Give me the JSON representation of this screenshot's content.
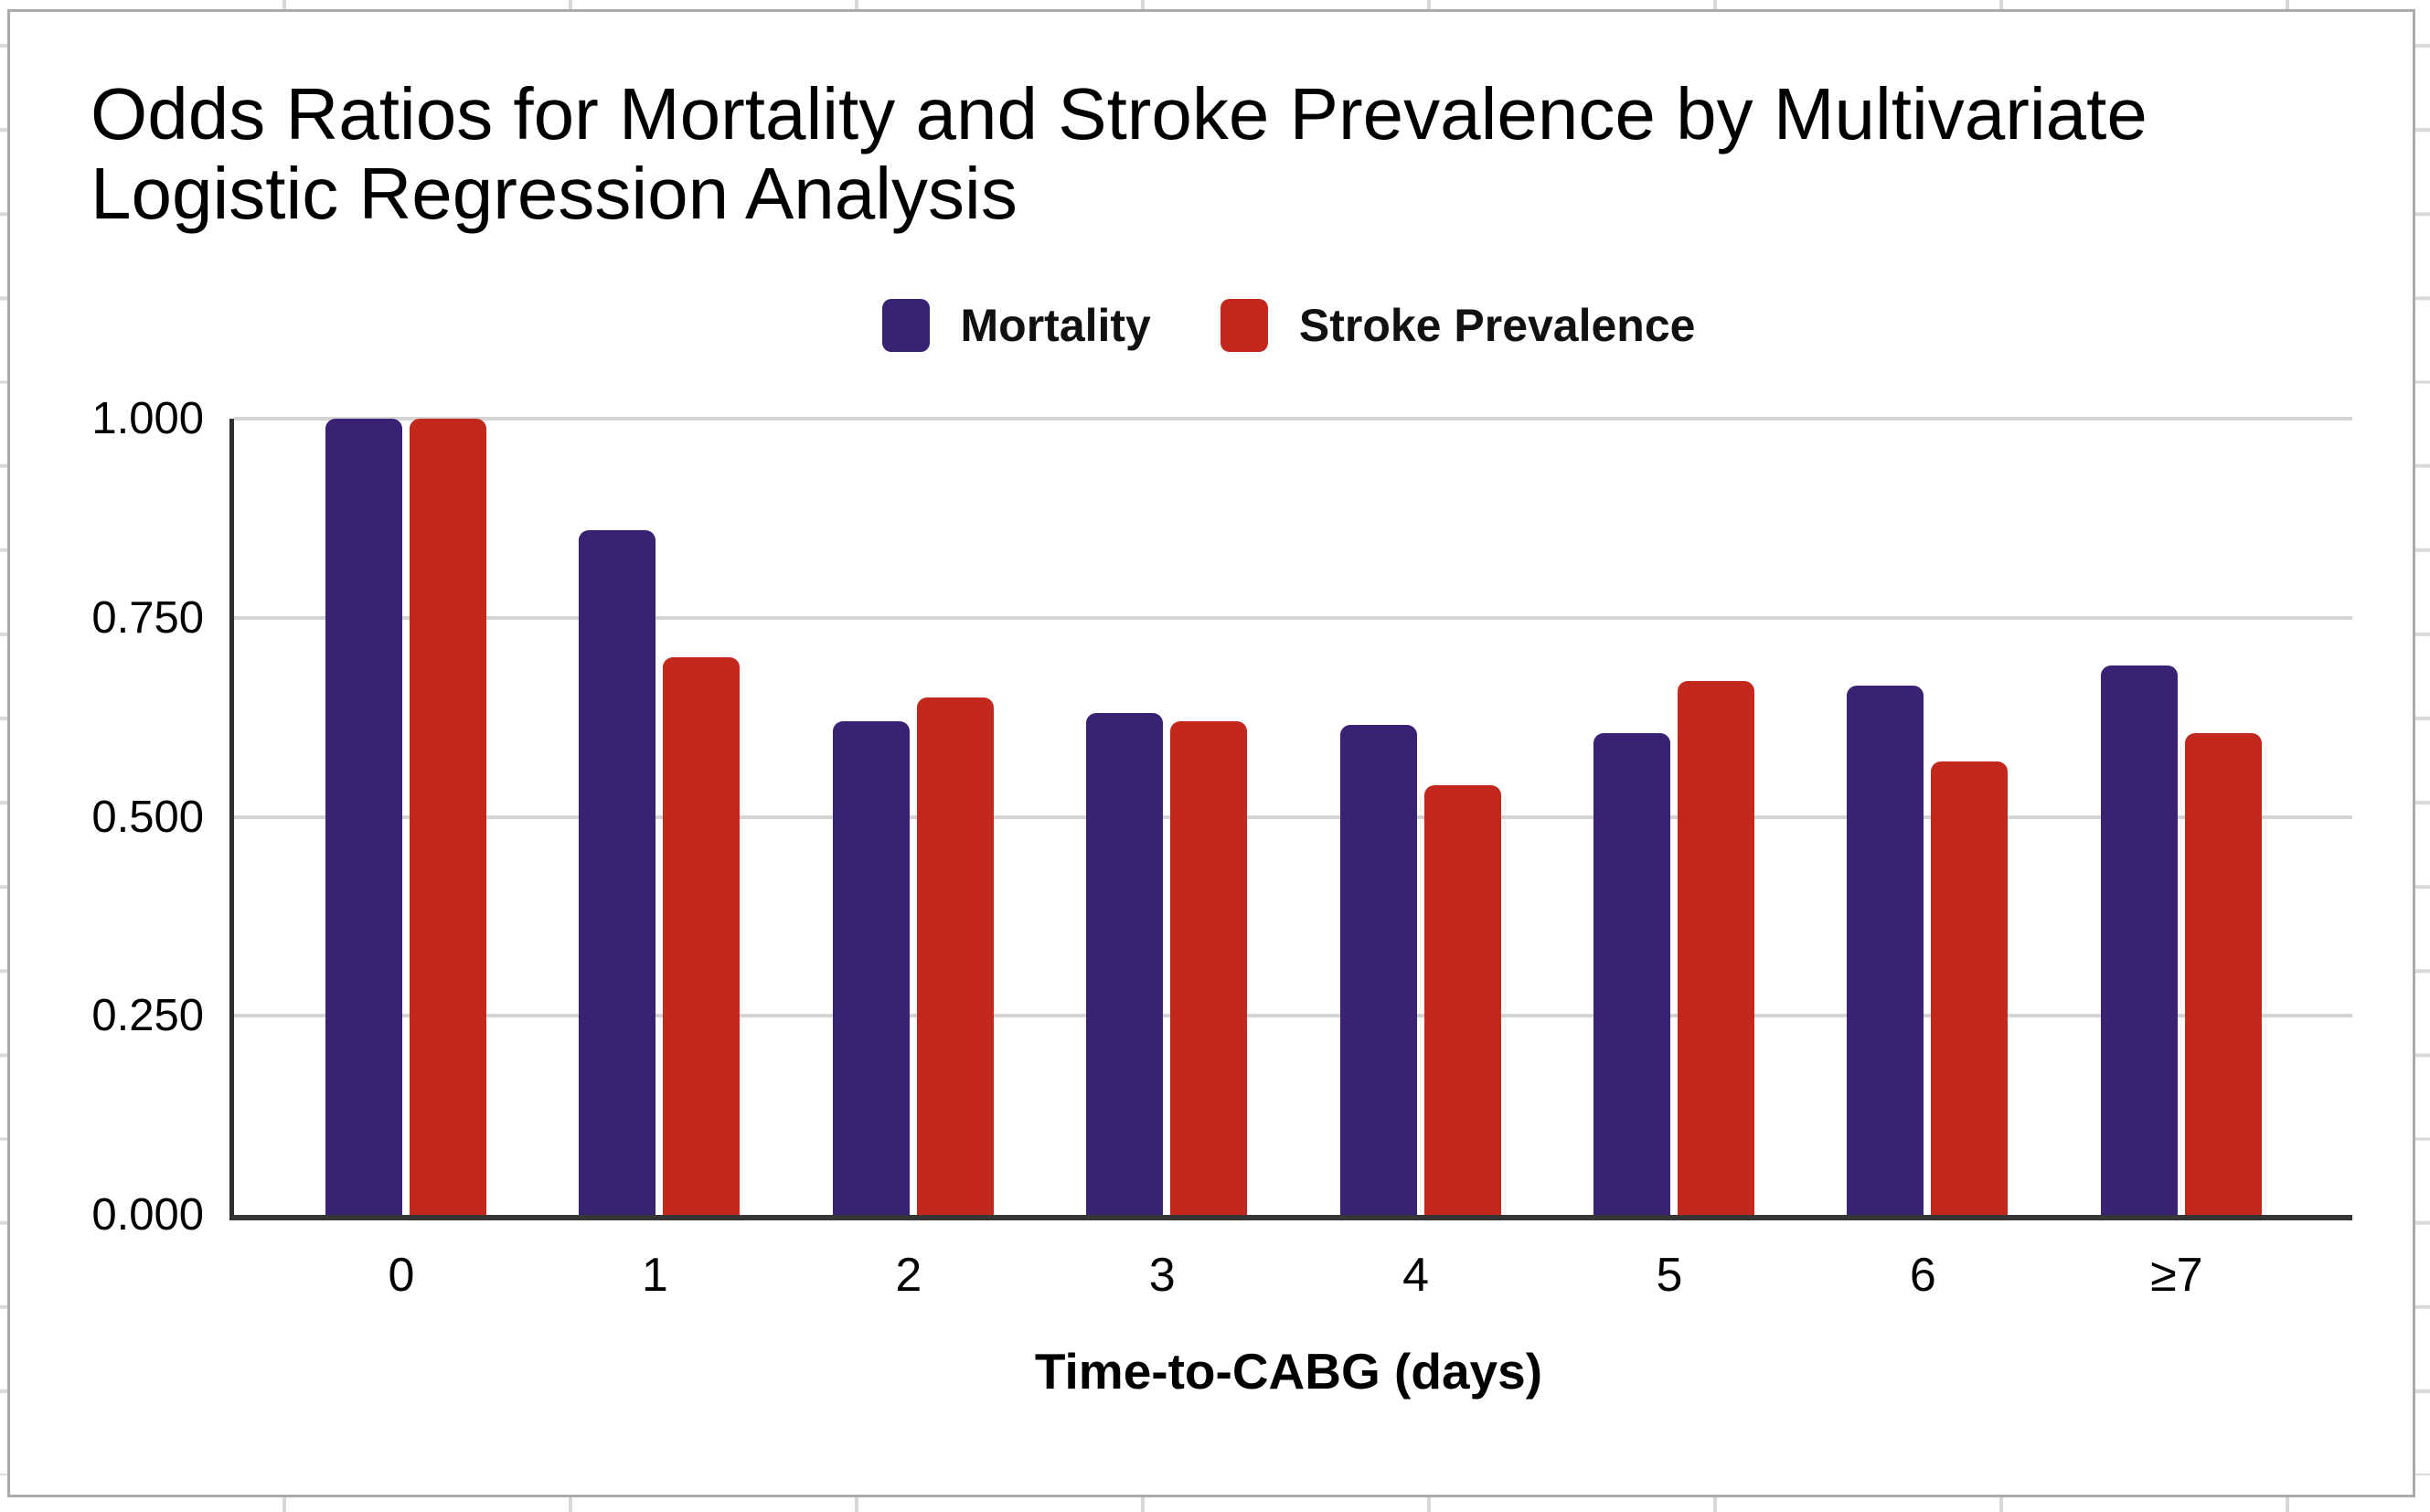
{
  "chart_data": {
    "type": "bar",
    "title_line1": "Odds Ratios for Mortality and Stroke Prevalence by Multivariate",
    "title_line2": "Logistic Regression Analysis",
    "title": "Odds Ratios for Mortality and Stroke Prevalence by Multivariate Logistic Regression Analysis",
    "xlabel": "Time-to-CABG (days)",
    "ylabel": "",
    "categories": [
      "0",
      "1",
      "2",
      "3",
      "4",
      "5",
      "6",
      "≥7"
    ],
    "series": [
      {
        "name": "Mortality",
        "color": "#392274",
        "values": [
          1.0,
          0.86,
          0.62,
          0.63,
          0.615,
          0.605,
          0.665,
          0.69
        ]
      },
      {
        "name": "Stroke Prevalence",
        "color": "#C3281C",
        "values": [
          1.0,
          0.7,
          0.65,
          0.62,
          0.54,
          0.67,
          0.57,
          0.605
        ]
      }
    ],
    "y_ticks": [
      {
        "label": "1.000",
        "value": 1.0
      },
      {
        "label": "0.750",
        "value": 0.75
      },
      {
        "label": "0.500",
        "value": 0.5
      },
      {
        "label": "0.250",
        "value": 0.25
      },
      {
        "label": "0.000",
        "value": 0.0
      }
    ],
    "ylim": [
      0.0,
      1.0
    ],
    "grid": true,
    "legend_position": "top-center"
  }
}
